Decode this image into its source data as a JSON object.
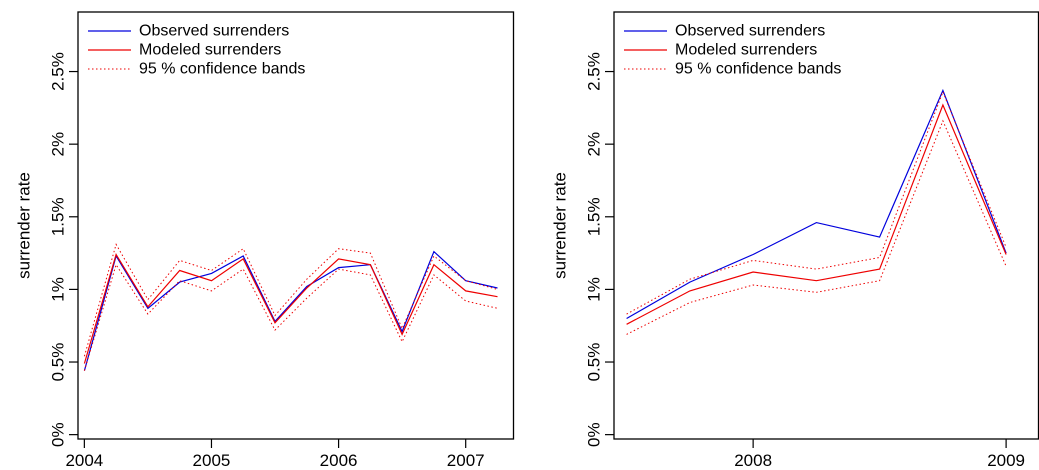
{
  "chart_data": [
    {
      "type": "line",
      "title": "",
      "xlabel": "",
      "ylabel": "surrender rate",
      "ylim": [
        -0.0003,
        0.0291
      ],
      "yticks": [
        0,
        0.005,
        0.01,
        0.015,
        0.02,
        0.025
      ],
      "ytick_labels": [
        "0%",
        "0.5%",
        "1%",
        "1.5%",
        "2%",
        "2.5%"
      ],
      "xlim": [
        2003.95,
        2007.38
      ],
      "xticks": [
        2004,
        2005,
        2006,
        2007
      ],
      "xtick_labels": [
        "2004",
        "2005",
        "2006",
        "2007"
      ],
      "grid": false,
      "legend_position": "top-left",
      "x": [
        2004.0,
        2004.25,
        2004.5,
        2004.75,
        2005.0,
        2005.25,
        2005.5,
        2005.75,
        2006.0,
        2006.25,
        2006.5,
        2006.75,
        2007.0,
        2007.25
      ],
      "series": [
        {
          "name": "Observed surrenders",
          "color": "#0000dd",
          "style": "solid",
          "values": [
            0.0044,
            0.0123,
            0.0087,
            0.0105,
            0.0111,
            0.0123,
            0.0078,
            0.0102,
            0.0115,
            0.0117,
            0.0071,
            0.0126,
            0.0106,
            0.0101
          ]
        },
        {
          "name": "Modeled surrenders",
          "color": "#ee0000",
          "style": "solid",
          "values": [
            0.0049,
            0.0124,
            0.0088,
            0.0113,
            0.0106,
            0.0121,
            0.0077,
            0.0101,
            0.0121,
            0.0117,
            0.0069,
            0.0117,
            0.0099,
            0.0095
          ]
        },
        {
          "name": "95 % confidence bands",
          "color": "#ee0000",
          "style": "dotted",
          "values": [
            0.0054,
            0.0131,
            0.0093,
            0.012,
            0.0113,
            0.0128,
            0.0082,
            0.0107,
            0.0128,
            0.0125,
            0.0073,
            0.0123,
            0.0106,
            0.01
          ]
        },
        {
          "name": "",
          "color": "#ee0000",
          "style": "dotted",
          "values": [
            0.0044,
            0.0117,
            0.0083,
            0.0106,
            0.0099,
            0.0114,
            0.0072,
            0.0094,
            0.0114,
            0.011,
            0.0064,
            0.011,
            0.0092,
            0.0087
          ]
        }
      ]
    },
    {
      "type": "line",
      "title": "",
      "xlabel": "",
      "ylabel": "surrender rate",
      "ylim": [
        -0.0003,
        0.0291
      ],
      "yticks": [
        0,
        0.005,
        0.01,
        0.015,
        0.02,
        0.025
      ],
      "ytick_labels": [
        "0%",
        "0.5%",
        "1%",
        "1.5%",
        "2%",
        "2.5%"
      ],
      "xlim": [
        2007.45,
        2009.13
      ],
      "xticks": [
        2008,
        2009
      ],
      "xtick_labels": [
        "2008",
        "2009"
      ],
      "grid": false,
      "legend_position": "top-left",
      "x": [
        2007.5,
        2007.75,
        2008.0,
        2008.25,
        2008.5,
        2008.75,
        2009.0
      ],
      "series": [
        {
          "name": "Observed surrenders",
          "color": "#0000dd",
          "style": "solid",
          "values": [
            0.008,
            0.0105,
            0.0124,
            0.0146,
            0.0136,
            0.0237,
            0.0125
          ]
        },
        {
          "name": "Modeled surrenders",
          "color": "#ee0000",
          "style": "solid",
          "values": [
            0.0076,
            0.0099,
            0.0112,
            0.0106,
            0.0114,
            0.0227,
            0.0124
          ]
        },
        {
          "name": "95 % confidence bands",
          "color": "#ee0000",
          "style": "dotted",
          "values": [
            0.0083,
            0.0107,
            0.012,
            0.0114,
            0.0122,
            0.0236,
            0.0129
          ]
        },
        {
          "name": "",
          "color": "#ee0000",
          "style": "dotted",
          "values": [
            0.0069,
            0.0091,
            0.0103,
            0.0098,
            0.0106,
            0.0216,
            0.0116
          ]
        }
      ]
    }
  ]
}
